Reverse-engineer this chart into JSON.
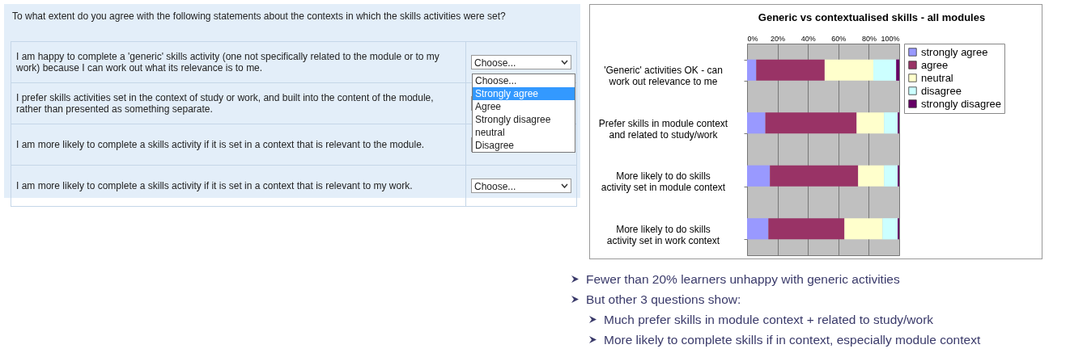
{
  "chart_data": [
    {
      "type": "other",
      "title": "To what extent do you agree with the following statements about the contexts in which the skills activities were set?",
      "annotations": [
        "I am happy to complete a 'generic' skills activity (one not specifically related to the module or to my work) because I can work out what its relevance is to me.",
        "I prefer skills activities set in the context of study or work, and built into the content of the module, rather than presented as something separate.",
        "I am more likely to complete a skills activity if it is set in a context that is relevant to the module.",
        "I am more likely to complete a skills activity if it is set in a context that is relevant to my work.",
        "Choose...",
        "Choose...",
        "Strongly agree",
        "Agree",
        "Strongly disagree",
        "neutral",
        "Disagree",
        "Choose..."
      ]
    },
    {
      "type": "bar",
      "orientation": "horizontal",
      "stacked": true,
      "title": "Generic vs contextualised skills - all modules",
      "categories": [
        "'Generic' activities OK - can work out relevance to me",
        "Prefer skills in module context and related to study/work",
        "More likely to do skills activity set in module context",
        "More likely to do skills activity set in work context"
      ],
      "series": [
        {
          "name": "strongly agree",
          "color": "#9999ff",
          "values": [
            6,
            12,
            15,
            14
          ]
        },
        {
          "name": "agree",
          "color": "#993366",
          "values": [
            45,
            60,
            58,
            50
          ]
        },
        {
          "name": "neutral",
          "color": "#ffffcc",
          "values": [
            32,
            18,
            17,
            25
          ]
        },
        {
          "name": "disagree",
          "color": "#ccffff",
          "values": [
            15,
            9,
            9,
            10
          ]
        },
        {
          "name": "strongly disagree",
          "color": "#660066",
          "values": [
            2,
            1,
            1,
            1
          ]
        }
      ],
      "xlim": [
        0,
        100
      ],
      "xticks": [
        {
          "value": 0,
          "label": "0%"
        },
        {
          "value": 20,
          "label": "20%"
        },
        {
          "value": 40,
          "label": "40%"
        },
        {
          "value": 60,
          "label": "60%"
        },
        {
          "value": 80,
          "label": "80%"
        },
        {
          "value": 100,
          "label": "100%"
        }
      ],
      "grid": "x",
      "legend": "right",
      "annotations": [
        "Fewer than 20% learners unhappy with generic activities",
        "But other 3 questions show:",
        "Much prefer skills in module context + related to study/work",
        "More likely to complete skills if in context, especially module context"
      ]
    }
  ]
}
